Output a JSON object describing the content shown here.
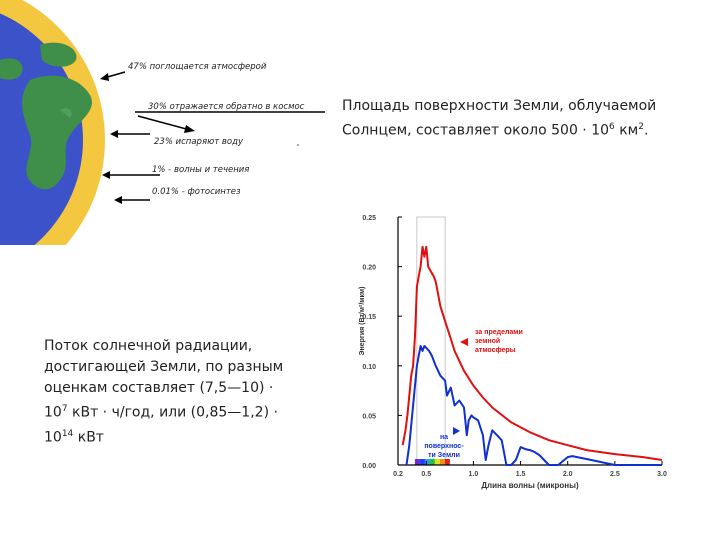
{
  "earth_flows": [
    "47% поглощается атмосферой",
    "30% отражается обратно в космос",
    "23% испаряют воду",
    "1% - волны и течения",
    "0.01% - фотосинтез"
  ],
  "area_text": {
    "line1": "Площадь поверхности Земли, облучаемой",
    "line2_prefix": "Солнцем, составляет около 500 · 10",
    "line2_exp": "6",
    "line2_unit": " км",
    "line2_exp2": "2",
    "line2_suffix": "."
  },
  "flux_text": {
    "line1": "Поток солнечной радиации,",
    "line2": "достигающей Земли, по разным",
    "line3": "оценкам составляет (7,5—10) ·",
    "line4_base": "10",
    "line4_exp": "7",
    "line4_rest": " кВт · ч/год, или (0,85—1,2) ·",
    "line5_base": "10",
    "line5_exp": "14",
    "line5_rest": " кВт"
  },
  "chart_data": {
    "type": "line",
    "xlabel": "Длина волны (микроны)",
    "ylabel": "Энергия (Вт/м²/мкм)",
    "xlim": [
      0.2,
      3.0
    ],
    "ylim": [
      0.0,
      0.25
    ],
    "x_ticks": [
      "0.2",
      "0.5",
      "1.0",
      "1.5",
      "2.0",
      "2.5",
      "3.0"
    ],
    "y_ticks": [
      "0.00",
      "0.05",
      "0.10",
      "0.15",
      "0.20",
      "0.25"
    ],
    "colors": {
      "outside": "#e01010",
      "surface": "#1030d0",
      "axis": "#000000"
    },
    "series": [
      {
        "name": "за пределами земной атмосферы",
        "x": [
          0.25,
          0.28,
          0.3,
          0.32,
          0.34,
          0.36,
          0.38,
          0.4,
          0.42,
          0.44,
          0.46,
          0.48,
          0.5,
          0.52,
          0.55,
          0.58,
          0.6,
          0.65,
          0.7,
          0.75,
          0.8,
          0.9,
          1.0,
          1.1,
          1.2,
          1.4,
          1.6,
          1.8,
          2.0,
          2.2,
          2.5,
          2.8,
          3.0
        ],
        "values": [
          0.02,
          0.035,
          0.05,
          0.07,
          0.09,
          0.1,
          0.13,
          0.18,
          0.19,
          0.2,
          0.22,
          0.21,
          0.22,
          0.2,
          0.195,
          0.19,
          0.185,
          0.16,
          0.145,
          0.13,
          0.115,
          0.095,
          0.08,
          0.068,
          0.058,
          0.043,
          0.033,
          0.025,
          0.02,
          0.015,
          0.011,
          0.008,
          0.005
        ]
      },
      {
        "name": "на поверхности Земли",
        "x": [
          0.29,
          0.32,
          0.34,
          0.36,
          0.38,
          0.4,
          0.42,
          0.44,
          0.46,
          0.48,
          0.5,
          0.53,
          0.56,
          0.6,
          0.65,
          0.7,
          0.72,
          0.76,
          0.8,
          0.85,
          0.9,
          0.93,
          0.95,
          0.98,
          1.0,
          1.05,
          1.1,
          1.13,
          1.16,
          1.2,
          1.25,
          1.3,
          1.35,
          1.4,
          1.45,
          1.5,
          1.55,
          1.6,
          1.65,
          1.7,
          1.75,
          1.8,
          1.85,
          1.9,
          1.95,
          2.0,
          2.05,
          2.1,
          2.2,
          2.3,
          2.4,
          2.5,
          2.6,
          2.7,
          2.8,
          2.9,
          3.0
        ],
        "values": [
          0.0,
          0.02,
          0.04,
          0.06,
          0.08,
          0.1,
          0.11,
          0.12,
          0.115,
          0.12,
          0.118,
          0.115,
          0.11,
          0.1,
          0.09,
          0.085,
          0.07,
          0.078,
          0.06,
          0.065,
          0.058,
          0.03,
          0.045,
          0.05,
          0.048,
          0.045,
          0.03,
          0.005,
          0.02,
          0.035,
          0.03,
          0.025,
          0.0,
          0.0,
          0.005,
          0.018,
          0.016,
          0.015,
          0.013,
          0.01,
          0.005,
          0.0,
          0.0,
          0.0,
          0.004,
          0.008,
          0.009,
          0.008,
          0.006,
          0.004,
          0.002,
          0.0,
          0.0,
          0.0,
          0.0,
          0.0,
          0.0
        ]
      }
    ],
    "annotations": [
      {
        "lines": [
          "за пределами",
          "земной",
          "атмосферы"
        ]
      },
      {
        "lines": [
          "на",
          "поверхнос-",
          "ти Земли"
        ]
      }
    ]
  }
}
